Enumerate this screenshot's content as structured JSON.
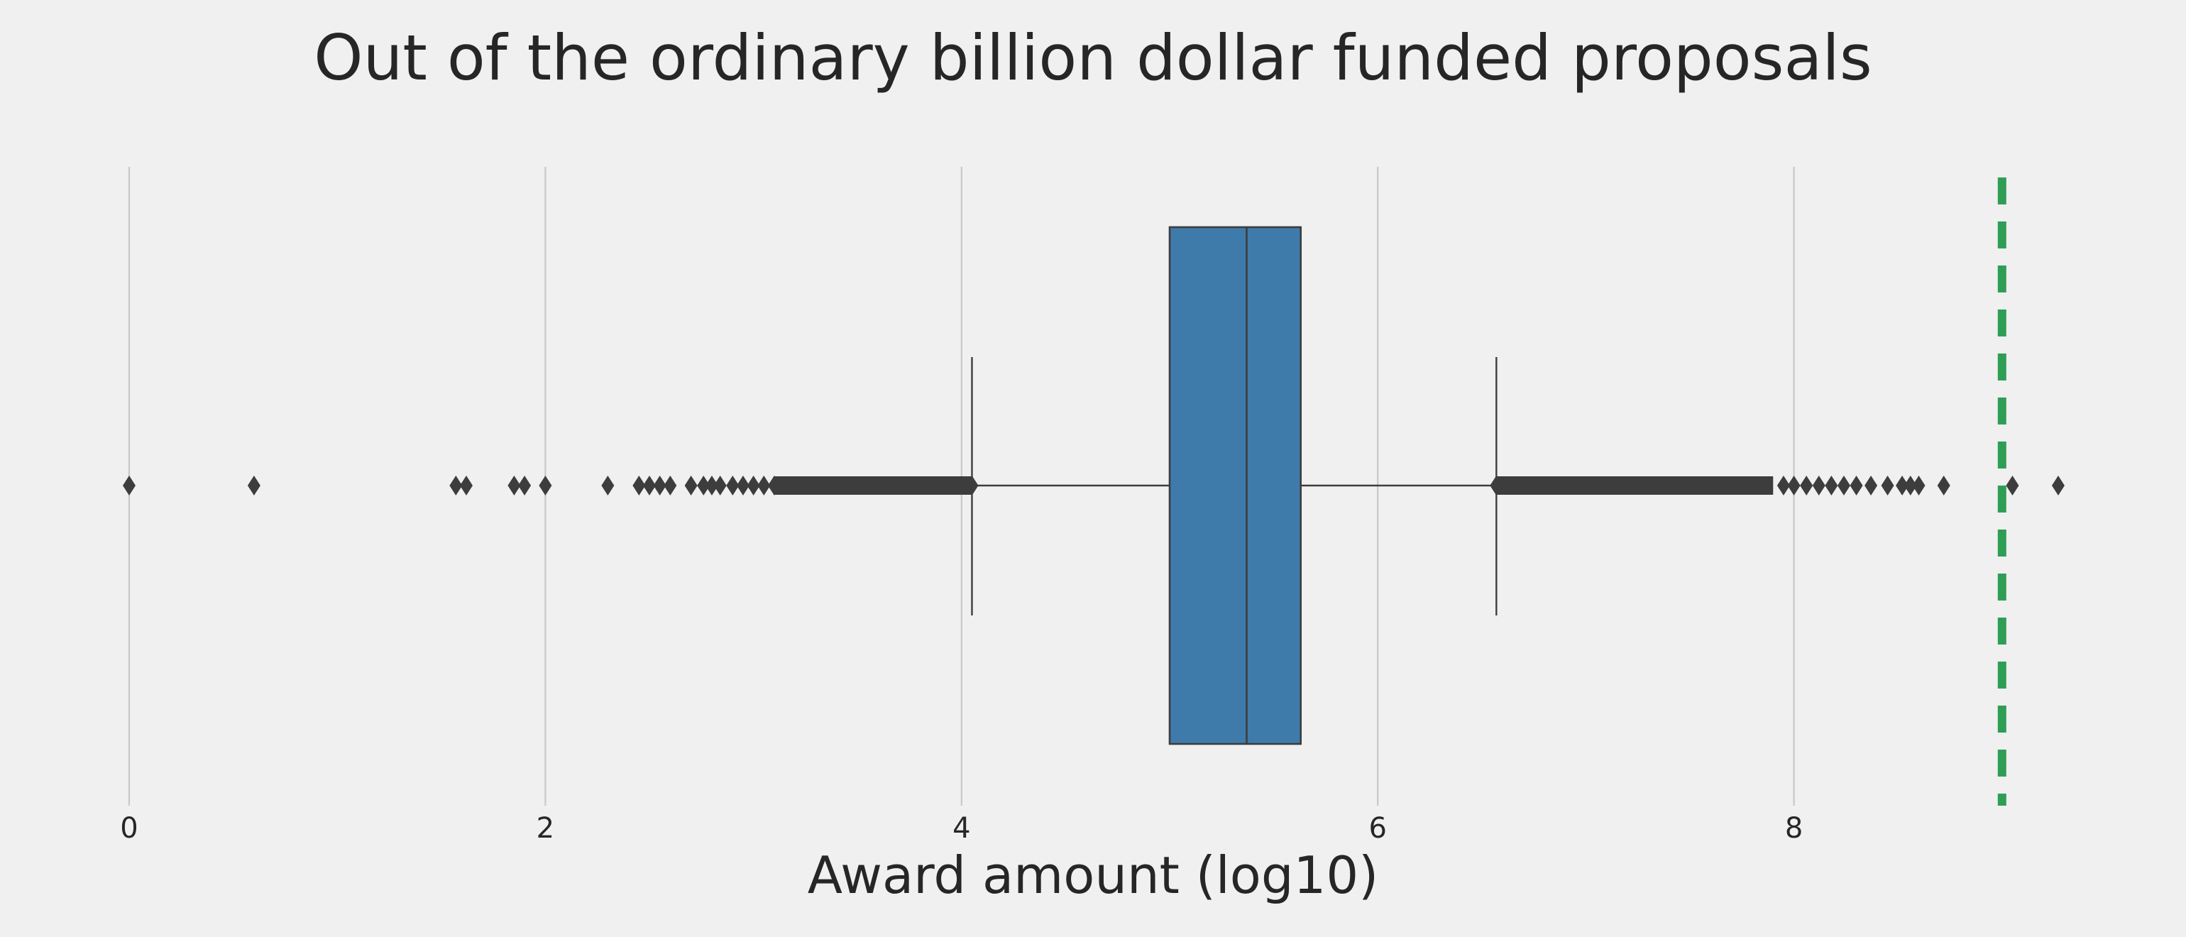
{
  "chart_data": {
    "type": "boxplot",
    "title": "Out of the ordinary billion dollar funded proposals",
    "xlabel": "Award amount (log10)",
    "xlim": [
      -0.3,
      9.6
    ],
    "xticks": [
      0,
      2,
      4,
      6,
      8
    ],
    "grid": "vertical",
    "orientation": "horizontal",
    "box": {
      "q1": 5.0,
      "median": 5.37,
      "q3": 5.63,
      "whisker_low": 4.05,
      "whisker_high": 6.57,
      "color": "#3e7bab",
      "edge_color": "#3d3d3d"
    },
    "outliers_low": [
      0.0,
      0.6,
      1.57,
      1.62,
      1.85,
      1.9,
      2.0,
      2.3,
      2.45,
      2.5,
      2.55,
      2.6,
      2.7,
      2.76,
      2.8,
      2.84,
      2.9,
      2.95,
      3.0,
      3.05,
      3.1
    ],
    "outliers_low_band": [
      3.1,
      4.05
    ],
    "outliers_high_band": [
      6.57,
      7.9
    ],
    "outliers_high": [
      7.95,
      8.0,
      8.06,
      8.12,
      8.18,
      8.24,
      8.3,
      8.37,
      8.45,
      8.52,
      8.56,
      8.6,
      8.72,
      9.05,
      9.27
    ],
    "reference_line": {
      "x": 9.0,
      "color": "#2e9e55",
      "style": "dashed"
    },
    "outlier_color": "#3d3d3d",
    "grid_color": "#c8c8c8"
  }
}
